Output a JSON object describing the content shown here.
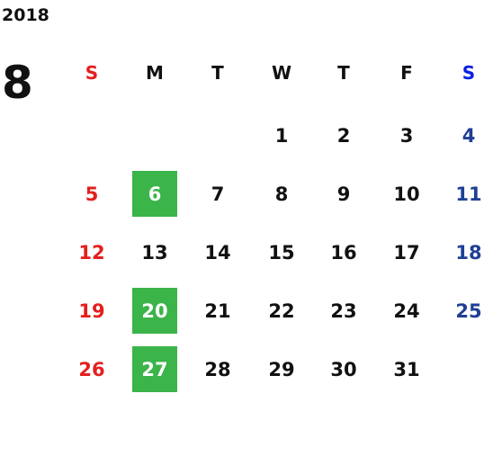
{
  "year": "2018",
  "month": "8",
  "weekdays": [
    "S",
    "M",
    "T",
    "W",
    "T",
    "F",
    "S"
  ],
  "weeks": [
    [
      null,
      null,
      null,
      1,
      2,
      3,
      4
    ],
    [
      5,
      6,
      7,
      8,
      9,
      10,
      11
    ],
    [
      12,
      13,
      14,
      15,
      16,
      17,
      18
    ],
    [
      19,
      20,
      21,
      22,
      23,
      24,
      25
    ],
    [
      26,
      27,
      28,
      29,
      30,
      31,
      null
    ]
  ],
  "highlighted_days": [
    6,
    20,
    27
  ],
  "colors": {
    "sunday": "#e3201e",
    "saturday_header": "#0a1fe6",
    "saturday": "#1f3f96",
    "weekday": "#111111",
    "highlight": "#3bb44a",
    "highlight_text": "#ffffff"
  }
}
